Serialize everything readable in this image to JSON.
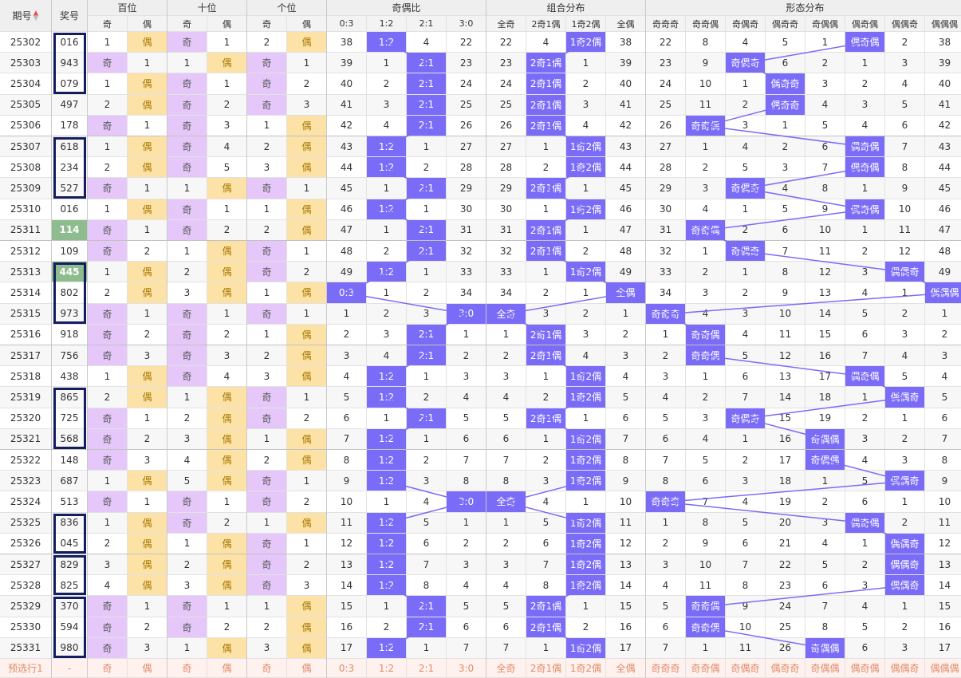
{
  "header": {
    "period_label": "期号",
    "prize_label": "奖号",
    "groups": [
      "百位",
      "十位",
      "个位",
      "奇偶比",
      "组合分布",
      "形态分布"
    ],
    "sub_parity": [
      "奇",
      "偶"
    ],
    "ratio_labels": [
      "0:3",
      "1:2",
      "2:1",
      "3:0"
    ],
    "combo_labels": [
      "全奇",
      "2奇1偶",
      "1奇2偶",
      "全偶"
    ],
    "form_labels": [
      "奇奇奇",
      "奇奇偶",
      "奇偶奇",
      "偶奇奇",
      "奇偶偶",
      "偶奇偶",
      "偶偶奇",
      "偶偶偶"
    ]
  },
  "rows": [
    {
      "p": "25302",
      "n": "016",
      "b": [
        1,
        "偶"
      ],
      "s": [
        "奇",
        1
      ],
      "g": [
        2,
        "偶"
      ],
      "r": [
        38,
        "1:2",
        4,
        22
      ],
      "z": [
        22,
        4,
        "1奇2偶",
        38
      ],
      "f": [
        22,
        8,
        4,
        5,
        1,
        "偶奇偶",
        2,
        38
      ]
    },
    {
      "p": "25303",
      "n": "943",
      "b": [
        "奇",
        1
      ],
      "s": [
        1,
        "偶"
      ],
      "g": [
        "奇",
        1
      ],
      "r": [
        39,
        1,
        "2:1",
        23
      ],
      "z": [
        23,
        "2奇1偶",
        1,
        39
      ],
      "f": [
        23,
        9,
        "奇偶奇",
        6,
        2,
        1,
        3,
        39
      ]
    },
    {
      "p": "25304",
      "n": "079",
      "b": [
        1,
        "偶"
      ],
      "s": [
        "奇",
        1
      ],
      "g": [
        "奇",
        2
      ],
      "r": [
        40,
        2,
        "2:1",
        24
      ],
      "z": [
        24,
        "2奇1偶",
        2,
        40
      ],
      "f": [
        24,
        10,
        1,
        "偶奇奇",
        3,
        2,
        4,
        40
      ]
    },
    {
      "p": "25305",
      "n": "497",
      "b": [
        2,
        "偶"
      ],
      "s": [
        "奇",
        2
      ],
      "g": [
        "奇",
        3
      ],
      "r": [
        41,
        3,
        "2:1",
        25
      ],
      "z": [
        25,
        "2奇1偶",
        3,
        41
      ],
      "f": [
        25,
        11,
        2,
        "偶奇奇",
        4,
        3,
        5,
        41
      ]
    },
    {
      "p": "25306",
      "n": "178",
      "b": [
        "奇",
        1
      ],
      "s": [
        "奇",
        3
      ],
      "g": [
        1,
        "偶"
      ],
      "r": [
        42,
        4,
        "2:1",
        26
      ],
      "z": [
        26,
        "2奇1偶",
        4,
        42
      ],
      "f": [
        26,
        "奇奇偶",
        3,
        1,
        5,
        4,
        6,
        42
      ]
    },
    {
      "p": "25307",
      "n": "618",
      "b": [
        1,
        "偶"
      ],
      "s": [
        "奇",
        4
      ],
      "g": [
        2,
        "偶"
      ],
      "r": [
        43,
        "1:2",
        1,
        27
      ],
      "z": [
        27,
        1,
        "1奇2偶",
        43
      ],
      "f": [
        27,
        1,
        4,
        2,
        6,
        "偶奇偶",
        7,
        43
      ]
    },
    {
      "p": "25308",
      "n": "234",
      "b": [
        2,
        "偶"
      ],
      "s": [
        "奇",
        5
      ],
      "g": [
        3,
        "偶"
      ],
      "r": [
        44,
        "1:2",
        2,
        28
      ],
      "z": [
        28,
        2,
        "1奇2偶",
        44
      ],
      "f": [
        28,
        2,
        5,
        3,
        7,
        "偶奇偶",
        8,
        44
      ]
    },
    {
      "p": "25309",
      "n": "527",
      "b": [
        "奇",
        1
      ],
      "s": [
        1,
        "偶"
      ],
      "g": [
        "奇",
        1
      ],
      "r": [
        45,
        1,
        "2:1",
        29
      ],
      "z": [
        29,
        "2奇1偶",
        1,
        45
      ],
      "f": [
        29,
        3,
        "奇偶奇",
        4,
        8,
        1,
        9,
        45
      ]
    },
    {
      "p": "25310",
      "n": "016",
      "b": [
        1,
        "偶"
      ],
      "s": [
        "奇",
        1
      ],
      "g": [
        1,
        "偶"
      ],
      "r": [
        46,
        "1:2",
        1,
        30
      ],
      "z": [
        30,
        1,
        "1奇2偶",
        46
      ],
      "f": [
        30,
        4,
        1,
        5,
        9,
        "偶奇偶",
        10,
        46
      ]
    },
    {
      "p": "25311",
      "n": "114",
      "hl": true,
      "b": [
        "奇",
        1
      ],
      "s": [
        "奇",
        2
      ],
      "g": [
        2,
        "偶"
      ],
      "r": [
        47,
        1,
        "2:1",
        31
      ],
      "z": [
        31,
        "2奇1偶",
        1,
        47
      ],
      "f": [
        31,
        "奇奇偶",
        2,
        6,
        10,
        1,
        11,
        47
      ]
    },
    {
      "p": "25312",
      "n": "109",
      "b": [
        "奇",
        2
      ],
      "s": [
        1,
        "偶"
      ],
      "g": [
        "奇",
        1
      ],
      "r": [
        48,
        2,
        "2:1",
        32
      ],
      "z": [
        32,
        "2奇1偶",
        2,
        48
      ],
      "f": [
        32,
        1,
        "奇偶奇",
        7,
        11,
        2,
        12,
        48
      ]
    },
    {
      "p": "25313",
      "n": "445",
      "hl": true,
      "b": [
        1,
        "偶"
      ],
      "s": [
        2,
        "偶"
      ],
      "g": [
        "奇",
        2
      ],
      "r": [
        49,
        "1:2",
        1,
        33
      ],
      "z": [
        33,
        1,
        "1奇2偶",
        49
      ],
      "f": [
        33,
        2,
        1,
        8,
        12,
        3,
        "偶偶奇",
        49
      ]
    },
    {
      "p": "25314",
      "n": "802",
      "b": [
        2,
        "偶"
      ],
      "s": [
        3,
        "偶"
      ],
      "g": [
        1,
        "偶"
      ],
      "r": [
        "0:3",
        1,
        2,
        34
      ],
      "z": [
        34,
        2,
        1,
        "全偶"
      ],
      "f": [
        34,
        3,
        2,
        9,
        13,
        4,
        1,
        "偶偶偶"
      ]
    },
    {
      "p": "25315",
      "n": "973",
      "b": [
        "奇",
        1
      ],
      "s": [
        "奇",
        1
      ],
      "g": [
        "奇",
        1
      ],
      "r": [
        1,
        2,
        3,
        "3:0"
      ],
      "z": [
        "全奇",
        3,
        2,
        1
      ],
      "f": [
        "奇奇奇",
        4,
        3,
        10,
        14,
        5,
        2,
        1
      ]
    },
    {
      "p": "25316",
      "n": "918",
      "b": [
        "奇",
        2
      ],
      "s": [
        "奇",
        2
      ],
      "g": [
        1,
        "偶"
      ],
      "r": [
        2,
        3,
        "2:1",
        1
      ],
      "z": [
        1,
        "2奇1偶",
        3,
        2
      ],
      "f": [
        1,
        "奇奇偶",
        4,
        11,
        15,
        6,
        3,
        2
      ]
    },
    {
      "p": "25317",
      "n": "756",
      "b": [
        "奇",
        3
      ],
      "s": [
        "奇",
        3
      ],
      "g": [
        2,
        "偶"
      ],
      "r": [
        3,
        4,
        "2:1",
        2
      ],
      "z": [
        2,
        "2奇1偶",
        4,
        3
      ],
      "f": [
        2,
        "奇奇偶",
        5,
        12,
        16,
        7,
        4,
        3
      ]
    },
    {
      "p": "25318",
      "n": "438",
      "b": [
        1,
        "偶"
      ],
      "s": [
        "奇",
        4
      ],
      "g": [
        3,
        "偶"
      ],
      "r": [
        4,
        "1:2",
        1,
        3
      ],
      "z": [
        3,
        1,
        "1奇2偶",
        4
      ],
      "f": [
        3,
        1,
        6,
        13,
        17,
        "偶奇偶",
        5,
        4
      ]
    },
    {
      "p": "25319",
      "n": "865",
      "b": [
        2,
        "偶"
      ],
      "s": [
        1,
        "偶"
      ],
      "g": [
        "奇",
        1
      ],
      "r": [
        5,
        "1:2",
        2,
        4
      ],
      "z": [
        4,
        2,
        "1奇2偶",
        5
      ],
      "f": [
        4,
        2,
        7,
        14,
        18,
        1,
        "偶偶奇",
        5
      ]
    },
    {
      "p": "25320",
      "n": "725",
      "b": [
        "奇",
        1
      ],
      "s": [
        2,
        "偶"
      ],
      "g": [
        "奇",
        2
      ],
      "r": [
        6,
        1,
        "2:1",
        5
      ],
      "z": [
        5,
        "2奇1偶",
        1,
        6
      ],
      "f": [
        5,
        3,
        "奇偶奇",
        15,
        19,
        2,
        1,
        6
      ]
    },
    {
      "p": "25321",
      "n": "568",
      "b": [
        "奇",
        2
      ],
      "s": [
        3,
        "偶"
      ],
      "g": [
        1,
        "偶"
      ],
      "r": [
        7,
        "1:2",
        1,
        6
      ],
      "z": [
        6,
        1,
        "1奇2偶",
        7
      ],
      "f": [
        6,
        4,
        1,
        16,
        "奇偶偶",
        3,
        2,
        7
      ]
    },
    {
      "p": "25322",
      "n": "148",
      "b": [
        "奇",
        3
      ],
      "s": [
        4,
        "偶"
      ],
      "g": [
        2,
        "偶"
      ],
      "r": [
        8,
        "1:2",
        2,
        7
      ],
      "z": [
        7,
        2,
        "1奇2偶",
        8
      ],
      "f": [
        7,
        5,
        2,
        17,
        "奇偶偶",
        4,
        3,
        8
      ]
    },
    {
      "p": "25323",
      "n": "687",
      "b": [
        1,
        "偶"
      ],
      "s": [
        5,
        "偶"
      ],
      "g": [
        "奇",
        1
      ],
      "r": [
        9,
        "1:2",
        3,
        8
      ],
      "z": [
        8,
        3,
        "1奇2偶",
        9
      ],
      "f": [
        8,
        6,
        3,
        18,
        1,
        5,
        "偶偶奇",
        9
      ]
    },
    {
      "p": "25324",
      "n": "513",
      "b": [
        "奇",
        1
      ],
      "s": [
        "奇",
        1
      ],
      "g": [
        "奇",
        2
      ],
      "r": [
        10,
        1,
        4,
        "3:0"
      ],
      "z": [
        "全奇",
        4,
        1,
        10
      ],
      "f": [
        "奇奇奇",
        7,
        4,
        19,
        2,
        6,
        1,
        10
      ]
    },
    {
      "p": "25325",
      "n": "836",
      "b": [
        1,
        "偶"
      ],
      "s": [
        "奇",
        2
      ],
      "g": [
        1,
        "偶"
      ],
      "r": [
        11,
        "1:2",
        5,
        1
      ],
      "z": [
        1,
        5,
        "1奇2偶",
        11
      ],
      "f": [
        1,
        8,
        5,
        20,
        3,
        "偶奇偶",
        2,
        11
      ]
    },
    {
      "p": "25326",
      "n": "045",
      "b": [
        2,
        "偶"
      ],
      "s": [
        1,
        "偶"
      ],
      "g": [
        "奇",
        1
      ],
      "r": [
        12,
        "1:2",
        6,
        2
      ],
      "z": [
        2,
        6,
        "1奇2偶",
        12
      ],
      "f": [
        2,
        9,
        6,
        21,
        4,
        1,
        "偶偶奇",
        12
      ]
    },
    {
      "p": "25327",
      "n": "829",
      "b": [
        3,
        "偶"
      ],
      "s": [
        2,
        "偶"
      ],
      "g": [
        "奇",
        2
      ],
      "r": [
        13,
        "1:2",
        7,
        3
      ],
      "z": [
        3,
        7,
        "1奇2偶",
        13
      ],
      "f": [
        3,
        10,
        7,
        22,
        5,
        2,
        "偶偶奇",
        13
      ]
    },
    {
      "p": "25328",
      "n": "825",
      "b": [
        4,
        "偶"
      ],
      "s": [
        3,
        "偶"
      ],
      "g": [
        "奇",
        3
      ],
      "r": [
        14,
        "1:2",
        8,
        4
      ],
      "z": [
        4,
        8,
        "1奇2偶",
        14
      ],
      "f": [
        4,
        11,
        8,
        23,
        6,
        3,
        "偶偶奇",
        14
      ]
    },
    {
      "p": "25329",
      "n": "370",
      "b": [
        "奇",
        1
      ],
      "s": [
        "奇",
        1
      ],
      "g": [
        1,
        "偶"
      ],
      "r": [
        15,
        1,
        "2:1",
        5
      ],
      "z": [
        5,
        "2奇1偶",
        1,
        15
      ],
      "f": [
        5,
        "奇奇偶",
        9,
        24,
        7,
        4,
        1,
        15
      ]
    },
    {
      "p": "25330",
      "n": "594",
      "b": [
        "奇",
        2
      ],
      "s": [
        "奇",
        2
      ],
      "g": [
        2,
        "偶"
      ],
      "r": [
        16,
        2,
        "2:1",
        6
      ],
      "z": [
        6,
        "2奇1偶",
        2,
        16
      ],
      "f": [
        6,
        "奇奇偶",
        10,
        25,
        8,
        5,
        2,
        16
      ]
    },
    {
      "p": "25331",
      "n": "980",
      "b": [
        "奇",
        3
      ],
      "s": [
        1,
        "偶"
      ],
      "g": [
        3,
        "偶"
      ],
      "r": [
        17,
        "1:2",
        1,
        7
      ],
      "z": [
        7,
        1,
        "1奇2偶",
        17
      ],
      "f": [
        7,
        1,
        11,
        26,
        "奇偶偶",
        6,
        3,
        17
      ]
    }
  ],
  "predict_row": {
    "label": "预选行1",
    "prize": "-",
    "cells": [
      "奇",
      "偶",
      "奇",
      "偶",
      "奇",
      "偶",
      "0:3",
      "1:2",
      "2:1",
      "3:0",
      "全奇",
      "2奇1偶",
      "1奇2偶",
      "全偶",
      "奇奇奇",
      "奇奇偶",
      "奇偶奇",
      "偶奇奇",
      "奇偶偶",
      "偶奇偶",
      "偶偶奇",
      "偶偶偶"
    ]
  },
  "boxed_groups": [
    [
      0,
      2
    ],
    [
      5,
      7
    ],
    [
      11,
      13
    ],
    [
      17,
      19
    ],
    [
      23,
      24
    ],
    [
      25,
      26
    ],
    [
      27,
      29
    ]
  ],
  "colors": {
    "odd": "#e5c8f9",
    "even": "#fde2a7",
    "hit": "#7b6cf7",
    "line": "#7b6cf7",
    "box": "#141d5e",
    "highlight": "#8fbc8f"
  }
}
